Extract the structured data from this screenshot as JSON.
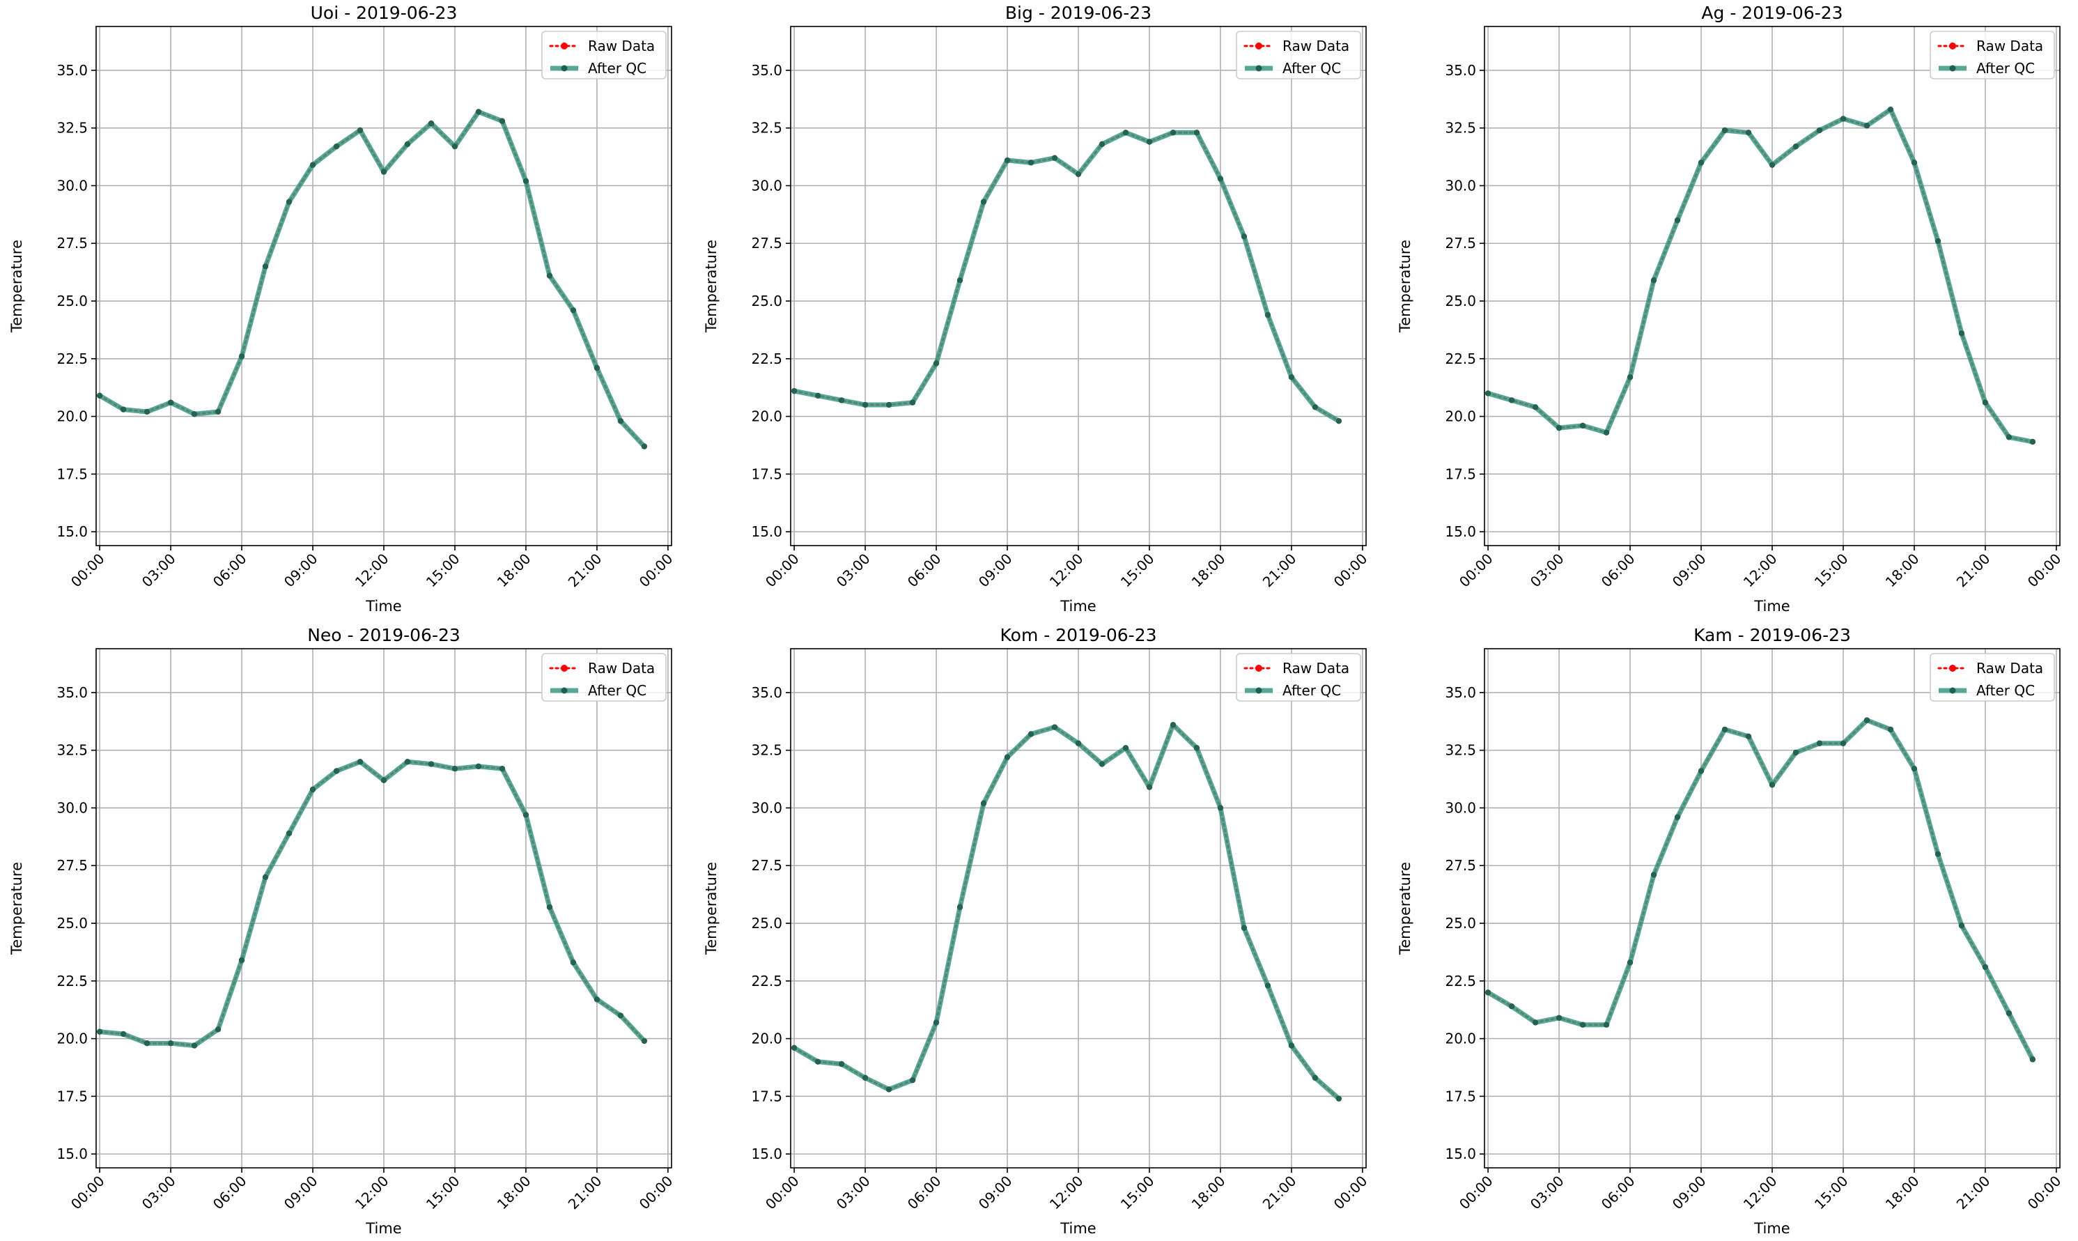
{
  "chart_data": [
    {
      "type": "line",
      "title": "Uoi - 2019-06-23",
      "xlabel": "Time",
      "ylabel": "Temperature",
      "xticks": [
        "00:00",
        "03:00",
        "06:00",
        "09:00",
        "12:00",
        "15:00",
        "18:00",
        "21:00",
        "00:00"
      ],
      "yticks": [
        "15.0",
        "17.5",
        "20.0",
        "22.5",
        "25.0",
        "27.5",
        "30.0",
        "32.5",
        "35.0"
      ],
      "xlim": [
        -0.15,
        24.15
      ],
      "ylim": [
        14.4,
        36.9
      ],
      "grid": true,
      "legend_position": "top-right",
      "x_hours": [
        0,
        1,
        2,
        3,
        4,
        5,
        6,
        7,
        8,
        9,
        10,
        11,
        12,
        13,
        14,
        15,
        16,
        17,
        18,
        19,
        20,
        21,
        22,
        23
      ],
      "series": [
        {
          "name": "Raw Data",
          "color": "#ff0000",
          "style": "dotted-marker",
          "values": [
            20.9,
            20.3,
            20.2,
            20.6,
            20.1,
            20.2,
            22.6,
            26.5,
            29.3,
            30.9,
            31.7,
            32.4,
            30.6,
            31.8,
            32.7,
            31.7,
            33.2,
            32.8,
            30.2,
            26.1,
            24.6,
            22.1,
            19.8,
            18.7
          ]
        },
        {
          "name": "After QC",
          "color": "#3a9a84",
          "style": "solid-marker",
          "values": [
            20.9,
            20.3,
            20.2,
            20.6,
            20.1,
            20.2,
            22.6,
            26.5,
            29.3,
            30.9,
            31.7,
            32.4,
            30.6,
            31.8,
            32.7,
            31.7,
            33.2,
            32.8,
            30.2,
            26.1,
            24.6,
            22.1,
            19.8,
            18.7
          ]
        }
      ]
    },
    {
      "type": "line",
      "title": "Big - 2019-06-23",
      "xlabel": "Time",
      "ylabel": "Temperature",
      "xticks": [
        "00:00",
        "03:00",
        "06:00",
        "09:00",
        "12:00",
        "15:00",
        "18:00",
        "21:00",
        "00:00"
      ],
      "yticks": [
        "15.0",
        "17.5",
        "20.0",
        "22.5",
        "25.0",
        "27.5",
        "30.0",
        "32.5",
        "35.0"
      ],
      "xlim": [
        -0.15,
        24.15
      ],
      "ylim": [
        14.4,
        36.9
      ],
      "grid": true,
      "legend_position": "top-right",
      "x_hours": [
        0,
        1,
        2,
        3,
        4,
        5,
        6,
        7,
        8,
        9,
        10,
        11,
        12,
        13,
        14,
        15,
        16,
        17,
        18,
        19,
        20,
        21,
        22,
        23
      ],
      "series": [
        {
          "name": "Raw Data",
          "color": "#ff0000",
          "style": "dotted-marker",
          "values": [
            21.1,
            20.9,
            20.7,
            20.5,
            20.5,
            20.6,
            22.3,
            25.9,
            29.3,
            31.1,
            31.0,
            31.2,
            30.5,
            31.8,
            32.3,
            31.9,
            32.3,
            32.3,
            30.3,
            27.8,
            24.4,
            21.7,
            20.4,
            19.8
          ]
        },
        {
          "name": "After QC",
          "color": "#3a9a84",
          "style": "solid-marker",
          "values": [
            21.1,
            20.9,
            20.7,
            20.5,
            20.5,
            20.6,
            22.3,
            25.9,
            29.3,
            31.1,
            31.0,
            31.2,
            30.5,
            31.8,
            32.3,
            31.9,
            32.3,
            32.3,
            30.3,
            27.8,
            24.4,
            21.7,
            20.4,
            19.8
          ]
        }
      ]
    },
    {
      "type": "line",
      "title": "Ag - 2019-06-23",
      "xlabel": "Time",
      "ylabel": "Temperature",
      "xticks": [
        "00:00",
        "03:00",
        "06:00",
        "09:00",
        "12:00",
        "15:00",
        "18:00",
        "21:00",
        "00:00"
      ],
      "yticks": [
        "15.0",
        "17.5",
        "20.0",
        "22.5",
        "25.0",
        "27.5",
        "30.0",
        "32.5",
        "35.0"
      ],
      "xlim": [
        -0.15,
        24.15
      ],
      "ylim": [
        14.4,
        36.9
      ],
      "grid": true,
      "legend_position": "top-right",
      "x_hours": [
        0,
        1,
        2,
        3,
        4,
        5,
        6,
        7,
        8,
        9,
        10,
        11,
        12,
        13,
        14,
        15,
        16,
        17,
        18,
        19,
        20,
        21,
        22,
        23
      ],
      "series": [
        {
          "name": "Raw Data",
          "color": "#ff0000",
          "style": "dotted-marker",
          "values": [
            21.0,
            20.7,
            20.4,
            19.5,
            19.6,
            19.3,
            21.7,
            25.9,
            28.5,
            31.0,
            32.4,
            32.3,
            30.9,
            31.7,
            32.4,
            32.9,
            32.6,
            33.3,
            31.0,
            27.6,
            23.6,
            20.6,
            19.1,
            18.9
          ]
        },
        {
          "name": "After QC",
          "color": "#3a9a84",
          "style": "solid-marker",
          "values": [
            21.0,
            20.7,
            20.4,
            19.5,
            19.6,
            19.3,
            21.7,
            25.9,
            28.5,
            31.0,
            32.4,
            32.3,
            30.9,
            31.7,
            32.4,
            32.9,
            32.6,
            33.3,
            31.0,
            27.6,
            23.6,
            20.6,
            19.1,
            18.9
          ]
        }
      ]
    },
    {
      "type": "line",
      "title": "Neo - 2019-06-23",
      "xlabel": "Time",
      "ylabel": "Temperature",
      "xticks": [
        "00:00",
        "03:00",
        "06:00",
        "09:00",
        "12:00",
        "15:00",
        "18:00",
        "21:00",
        "00:00"
      ],
      "yticks": [
        "15.0",
        "17.5",
        "20.0",
        "22.5",
        "25.0",
        "27.5",
        "30.0",
        "32.5",
        "35.0"
      ],
      "xlim": [
        -0.15,
        24.15
      ],
      "ylim": [
        14.4,
        36.9
      ],
      "grid": true,
      "legend_position": "top-right",
      "x_hours": [
        0,
        1,
        2,
        3,
        4,
        5,
        6,
        7,
        8,
        9,
        10,
        11,
        12,
        13,
        14,
        15,
        16,
        17,
        18,
        19,
        20,
        21,
        22,
        23
      ],
      "series": [
        {
          "name": "Raw Data",
          "color": "#ff0000",
          "style": "dotted-marker",
          "values": [
            20.3,
            20.2,
            19.8,
            19.8,
            19.7,
            20.4,
            23.4,
            27.0,
            28.9,
            30.8,
            31.6,
            32.0,
            31.2,
            32.0,
            31.9,
            31.7,
            31.8,
            31.7,
            29.7,
            25.7,
            23.3,
            21.7,
            21.0,
            19.9
          ]
        },
        {
          "name": "After QC",
          "color": "#3a9a84",
          "style": "solid-marker",
          "values": [
            20.3,
            20.2,
            19.8,
            19.8,
            19.7,
            20.4,
            23.4,
            27.0,
            28.9,
            30.8,
            31.6,
            32.0,
            31.2,
            32.0,
            31.9,
            31.7,
            31.8,
            31.7,
            29.7,
            25.7,
            23.3,
            21.7,
            21.0,
            19.9
          ]
        }
      ]
    },
    {
      "type": "line",
      "title": "Kom - 2019-06-23",
      "xlabel": "Time",
      "ylabel": "Temperature",
      "xticks": [
        "00:00",
        "03:00",
        "06:00",
        "09:00",
        "12:00",
        "15:00",
        "18:00",
        "21:00",
        "00:00"
      ],
      "yticks": [
        "15.0",
        "17.5",
        "20.0",
        "22.5",
        "25.0",
        "27.5",
        "30.0",
        "32.5",
        "35.0"
      ],
      "xlim": [
        -0.15,
        24.15
      ],
      "ylim": [
        14.4,
        36.9
      ],
      "grid": true,
      "legend_position": "top-right",
      "x_hours": [
        0,
        1,
        2,
        3,
        4,
        5,
        6,
        7,
        8,
        9,
        10,
        11,
        12,
        13,
        14,
        15,
        16,
        17,
        18,
        19,
        20,
        21,
        22,
        23
      ],
      "series": [
        {
          "name": "Raw Data",
          "color": "#ff0000",
          "style": "dotted-marker",
          "values": [
            19.6,
            19.0,
            18.9,
            18.3,
            17.8,
            18.2,
            20.7,
            25.7,
            30.2,
            32.2,
            33.2,
            33.5,
            32.8,
            31.9,
            32.6,
            30.9,
            33.6,
            32.6,
            30.0,
            24.8,
            22.3,
            19.7,
            18.3,
            17.4
          ]
        },
        {
          "name": "After QC",
          "color": "#3a9a84",
          "style": "solid-marker",
          "values": [
            19.6,
            19.0,
            18.9,
            18.3,
            17.8,
            18.2,
            20.7,
            25.7,
            30.2,
            32.2,
            33.2,
            33.5,
            32.8,
            31.9,
            32.6,
            30.9,
            33.6,
            32.6,
            30.0,
            24.8,
            22.3,
            19.7,
            18.3,
            17.4
          ]
        }
      ]
    },
    {
      "type": "line",
      "title": "Kam - 2019-06-23",
      "xlabel": "Time",
      "ylabel": "Temperature",
      "xticks": [
        "00:00",
        "03:00",
        "06:00",
        "09:00",
        "12:00",
        "15:00",
        "18:00",
        "21:00",
        "00:00"
      ],
      "yticks": [
        "15.0",
        "17.5",
        "20.0",
        "22.5",
        "25.0",
        "27.5",
        "30.0",
        "32.5",
        "35.0"
      ],
      "xlim": [
        -0.15,
        24.15
      ],
      "ylim": [
        14.4,
        36.9
      ],
      "grid": true,
      "legend_position": "top-right",
      "x_hours": [
        0,
        1,
        2,
        3,
        4,
        5,
        6,
        7,
        8,
        9,
        10,
        11,
        12,
        13,
        14,
        15,
        16,
        17,
        18,
        19,
        20,
        21,
        22,
        23
      ],
      "series": [
        {
          "name": "Raw Data",
          "color": "#ff0000",
          "style": "dotted-marker",
          "values": [
            22.0,
            21.4,
            20.7,
            20.9,
            20.6,
            20.6,
            23.3,
            27.1,
            29.6,
            31.6,
            33.4,
            33.1,
            31.0,
            32.4,
            32.8,
            32.8,
            33.8,
            33.4,
            31.7,
            28.0,
            24.9,
            23.1,
            21.1,
            19.1
          ]
        },
        {
          "name": "After QC",
          "color": "#3a9a84",
          "style": "solid-marker",
          "values": [
            22.0,
            21.4,
            20.7,
            20.9,
            20.6,
            20.6,
            23.3,
            27.1,
            29.6,
            31.6,
            33.4,
            33.1,
            31.0,
            32.4,
            32.8,
            32.8,
            33.8,
            33.4,
            31.7,
            28.0,
            24.9,
            23.1,
            21.1,
            19.1
          ]
        }
      ]
    }
  ]
}
